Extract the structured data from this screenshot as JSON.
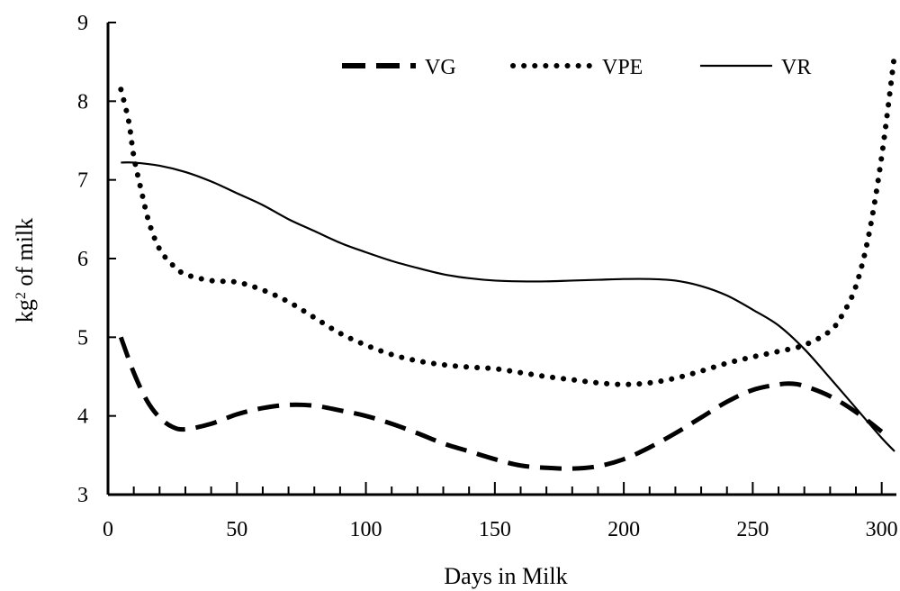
{
  "chart_data": {
    "type": "line",
    "xlabel": "Days in Milk",
    "ylabel_main": "kg",
    "ylabel_sup": "2",
    "ylabel_rest": " of milk",
    "xlim": [
      0,
      305
    ],
    "ylim": [
      3,
      9
    ],
    "xticks": [
      0,
      50,
      100,
      150,
      200,
      250,
      300
    ],
    "yticks": [
      3,
      4,
      5,
      6,
      7,
      8,
      9
    ],
    "legend_position": "top-right",
    "grid": false,
    "series": [
      {
        "name": "VG",
        "style": "dashed",
        "x": [
          5,
          10,
          15,
          20,
          25,
          30,
          40,
          50,
          60,
          70,
          80,
          90,
          100,
          110,
          120,
          130,
          140,
          150,
          160,
          170,
          180,
          190,
          200,
          210,
          220,
          230,
          240,
          250,
          260,
          265,
          270,
          280,
          290,
          300
        ],
        "y": [
          5.0,
          4.55,
          4.2,
          3.98,
          3.86,
          3.83,
          3.9,
          4.02,
          4.1,
          4.14,
          4.13,
          4.07,
          4.0,
          3.9,
          3.78,
          3.65,
          3.55,
          3.45,
          3.37,
          3.34,
          3.33,
          3.36,
          3.45,
          3.6,
          3.78,
          3.98,
          4.18,
          4.33,
          4.4,
          4.41,
          4.38,
          4.25,
          4.05,
          3.8
        ]
      },
      {
        "name": "VPE",
        "style": "dotted",
        "x": [
          5,
          8,
          10,
          13,
          16,
          20,
          25,
          30,
          40,
          50,
          60,
          70,
          80,
          90,
          100,
          110,
          120,
          130,
          140,
          150,
          160,
          170,
          180,
          190,
          200,
          210,
          220,
          230,
          240,
          250,
          260,
          270,
          280,
          285,
          290,
          295,
          300,
          305
        ],
        "y": [
          8.15,
          7.75,
          7.3,
          6.85,
          6.45,
          6.12,
          5.92,
          5.8,
          5.72,
          5.7,
          5.6,
          5.45,
          5.25,
          5.05,
          4.9,
          4.78,
          4.7,
          4.65,
          4.62,
          4.6,
          4.55,
          4.5,
          4.46,
          4.42,
          4.4,
          4.42,
          4.48,
          4.57,
          4.67,
          4.75,
          4.82,
          4.9,
          5.08,
          5.3,
          5.65,
          6.3,
          7.3,
          8.6
        ]
      },
      {
        "name": "VR",
        "style": "solid",
        "x": [
          5,
          10,
          20,
          30,
          40,
          50,
          60,
          70,
          80,
          90,
          100,
          110,
          120,
          130,
          140,
          150,
          160,
          170,
          180,
          190,
          200,
          210,
          220,
          230,
          240,
          250,
          260,
          270,
          280,
          290,
          300,
          305
        ],
        "y": [
          7.22,
          7.22,
          7.18,
          7.1,
          6.98,
          6.83,
          6.68,
          6.5,
          6.35,
          6.2,
          6.08,
          5.97,
          5.88,
          5.8,
          5.75,
          5.72,
          5.71,
          5.71,
          5.72,
          5.73,
          5.74,
          5.74,
          5.72,
          5.65,
          5.53,
          5.35,
          5.15,
          4.85,
          4.48,
          4.1,
          3.72,
          3.55
        ]
      }
    ]
  }
}
